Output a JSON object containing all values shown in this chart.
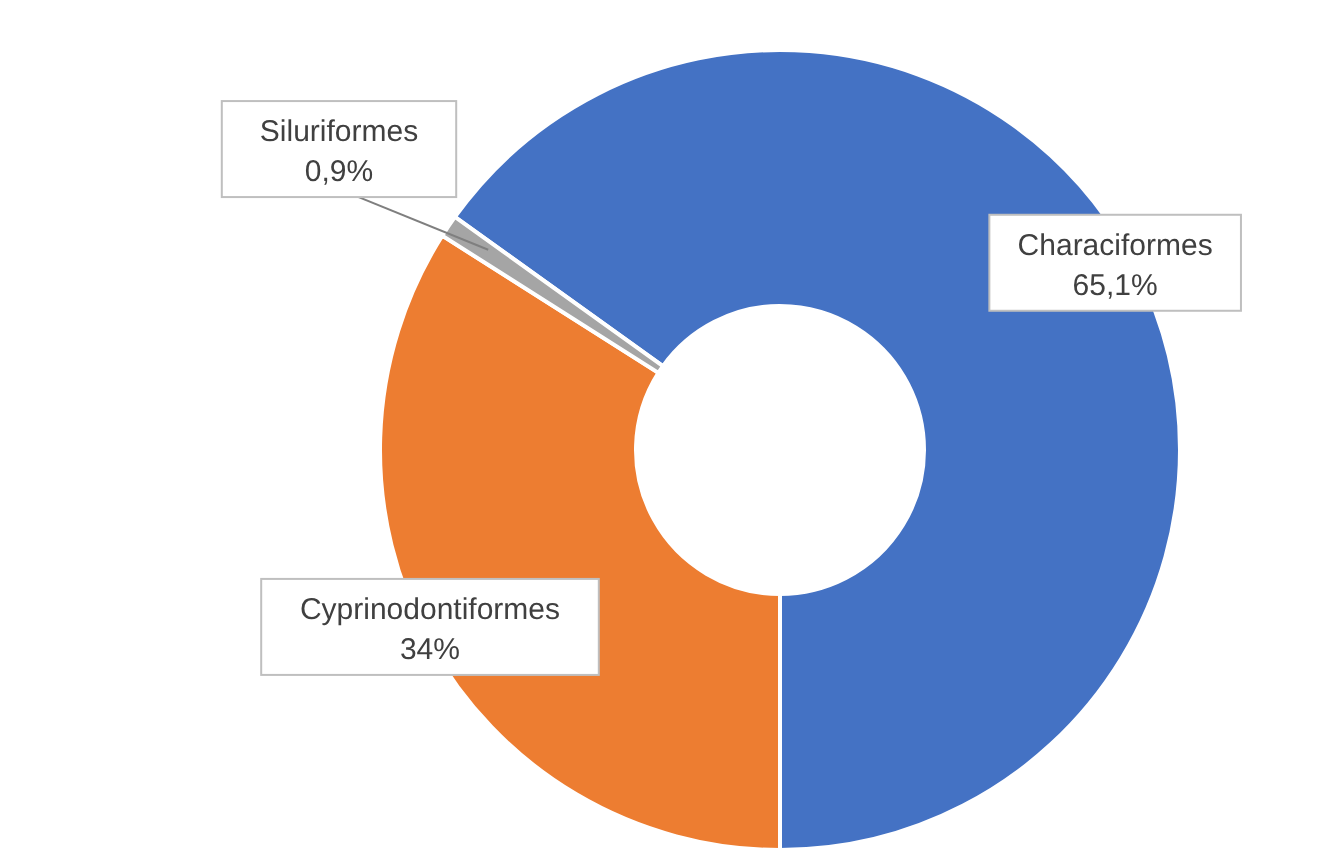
{
  "chart_data": {
    "type": "donut",
    "categories": [
      "Characiformes",
      "Cyprinodontiformes",
      "Siluriformes"
    ],
    "values": [
      65.1,
      34,
      0.9
    ],
    "value_labels": [
      "65,1%",
      "34%",
      "0,9%"
    ],
    "colors": [
      "#4472c4",
      "#ed7d31",
      "#a5a5a5"
    ]
  }
}
